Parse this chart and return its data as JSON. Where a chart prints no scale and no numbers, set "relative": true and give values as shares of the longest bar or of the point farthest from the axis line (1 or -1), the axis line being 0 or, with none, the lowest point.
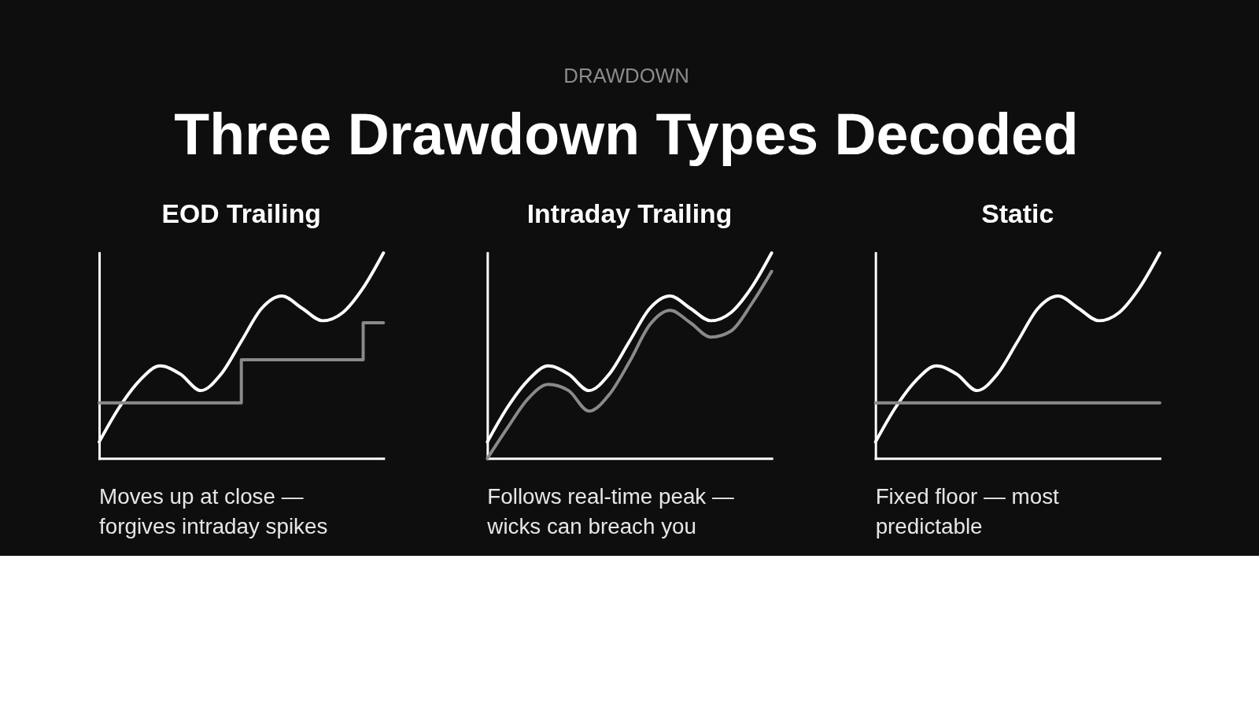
{
  "chart_data": [
    {
      "type": "other",
      "title": "Three Drawdown Types Decoded",
      "subtitle": "DRAWDOWN"
    },
    {
      "type": "line",
      "title": "EOD Trailing",
      "relative": true,
      "line_style": "solid",
      "categories": [
        null,
        null,
        null,
        null,
        null,
        null,
        null,
        null,
        null,
        null,
        null,
        null,
        null,
        null,
        null
      ],
      "series": [
        {
          "color": "#ffffff",
          "values": [
            0.08,
            0.25,
            0.38,
            0.45,
            0.41,
            0.33,
            0.41,
            0.57,
            0.73,
            0.79,
            0.73,
            0.67,
            0.71,
            0.83,
            1.0
          ]
        },
        {
          "type": "step",
          "color": "#8a8a8a",
          "values": [
            0.27,
            0.27,
            0.27,
            0.27,
            0.27,
            0.27,
            0.27,
            0.48,
            0.48,
            0.48,
            0.48,
            0.48,
            0.48,
            0.66,
            0.66
          ]
        }
      ],
      "annotations": [
        "Moves up at close —",
        "forgives intraday spikes"
      ]
    },
    {
      "type": "line",
      "title": "Intraday Trailing",
      "relative": true,
      "line_style": "solid",
      "categories": [
        null,
        null,
        null,
        null,
        null,
        null,
        null,
        null,
        null,
        null,
        null,
        null,
        null,
        null,
        null
      ],
      "series": [
        {
          "color": "#ffffff",
          "values": [
            0.08,
            0.25,
            0.38,
            0.45,
            0.41,
            0.33,
            0.41,
            0.57,
            0.73,
            0.79,
            0.73,
            0.67,
            0.71,
            0.83,
            1.0
          ]
        },
        {
          "color": "#8a8a8a",
          "values": [
            0.0,
            0.15,
            0.29,
            0.36,
            0.33,
            0.23,
            0.31,
            0.47,
            0.65,
            0.72,
            0.66,
            0.59,
            0.62,
            0.75,
            0.91
          ]
        }
      ],
      "annotations": [
        "Follows real-time peak —",
        "wicks can breach you"
      ]
    },
    {
      "type": "line",
      "title": "Static",
      "relative": true,
      "line_style": "solid",
      "categories": [
        null,
        null,
        null,
        null,
        null,
        null,
        null,
        null,
        null,
        null,
        null,
        null,
        null,
        null,
        null
      ],
      "series": [
        {
          "color": "#ffffff",
          "values": [
            0.08,
            0.25,
            0.38,
            0.45,
            0.41,
            0.33,
            0.41,
            0.57,
            0.73,
            0.79,
            0.73,
            0.67,
            0.71,
            0.83,
            1.0
          ]
        },
        {
          "color": "#8a8a8a",
          "values": [
            0.27,
            0.27,
            0.27,
            0.27,
            0.27,
            0.27,
            0.27,
            0.27,
            0.27,
            0.27,
            0.27,
            0.27,
            0.27,
            0.27,
            0.27
          ]
        }
      ],
      "annotations": [
        "Fixed floor — most",
        "predictable"
      ]
    }
  ]
}
